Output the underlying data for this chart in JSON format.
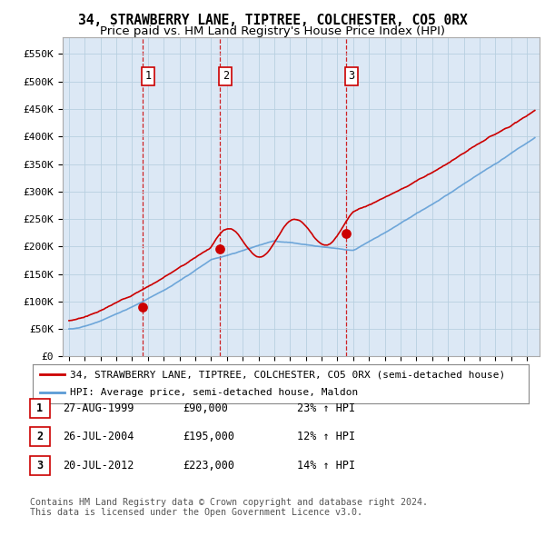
{
  "title": "34, STRAWBERRY LANE, TIPTREE, COLCHESTER, CO5 0RX",
  "subtitle": "Price paid vs. HM Land Registry's House Price Index (HPI)",
  "ylim": [
    0,
    580000
  ],
  "yticks": [
    0,
    50000,
    100000,
    150000,
    200000,
    250000,
    300000,
    350000,
    400000,
    450000,
    500000,
    550000
  ],
  "ytick_labels": [
    "£0",
    "£50K",
    "£100K",
    "£150K",
    "£200K",
    "£250K",
    "£300K",
    "£350K",
    "£400K",
    "£450K",
    "£500K",
    "£550K"
  ],
  "background_color": "#ffffff",
  "plot_bg_color": "#dce8f5",
  "grid_color": "#b8cfe0",
  "sale_color": "#cc0000",
  "hpi_color": "#5b9bd5",
  "vline_color": "#cc0000",
  "legend_label_sale": "34, STRAWBERRY LANE, TIPTREE, COLCHESTER, CO5 0RX (semi-detached house)",
  "legend_label_hpi": "HPI: Average price, semi-detached house, Maldon",
  "transactions": [
    {
      "date": 1999.65,
      "price": 90000,
      "label": "1"
    },
    {
      "date": 2004.56,
      "price": 195000,
      "label": "2"
    },
    {
      "date": 2012.55,
      "price": 223000,
      "label": "3"
    }
  ],
  "table_rows": [
    {
      "num": "1",
      "date": "27-AUG-1999",
      "price": "£90,000",
      "hpi": "23% ↑ HPI"
    },
    {
      "num": "2",
      "date": "26-JUL-2004",
      "price": "£195,000",
      "hpi": "12% ↑ HPI"
    },
    {
      "num": "3",
      "date": "20-JUL-2012",
      "price": "£223,000",
      "hpi": "14% ↑ HPI"
    }
  ],
  "footer": "Contains HM Land Registry data © Crown copyright and database right 2024.\nThis data is licensed under the Open Government Licence v3.0.",
  "title_fontsize": 10.5,
  "subtitle_fontsize": 9.5,
  "tick_fontsize": 8,
  "legend_fontsize": 8,
  "table_fontsize": 8.5
}
